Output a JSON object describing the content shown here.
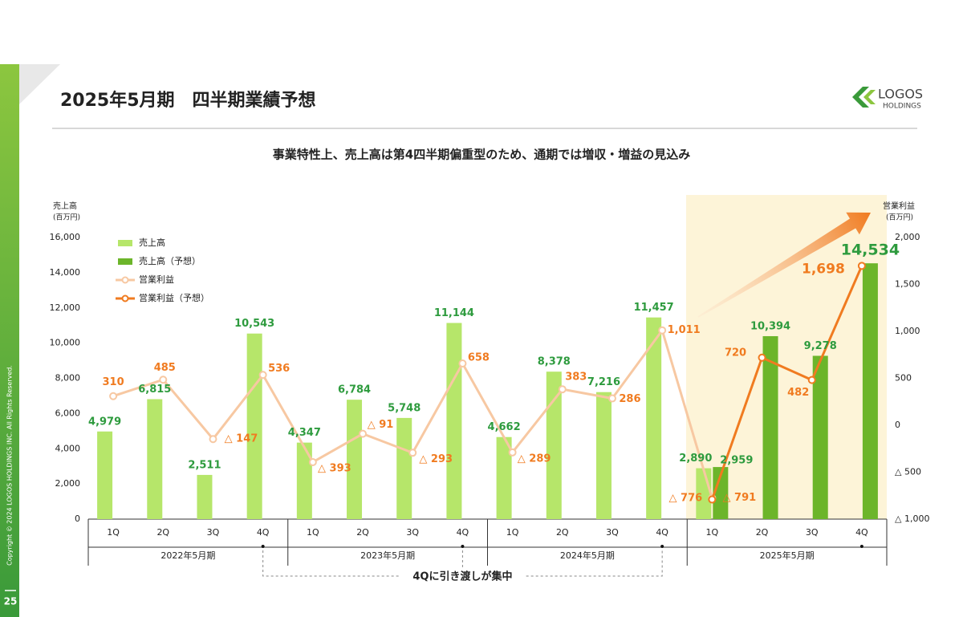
{
  "title": "2025年5月期　四半期業績予想",
  "subtitle": "事業特性上、売上高は第4四半期偏重型のため、通期では増収・増益の見込み",
  "logo": {
    "name": "LOGOS",
    "sub": "HOLDINGS"
  },
  "copyright": "Copyright © 2024 LOGOS HOLDINGS INC. All Rights Reserved.",
  "page_number": "25",
  "chart_data": {
    "type": "combo",
    "y_label": "売上高",
    "y_unit": "(百万円)",
    "y2_label": "営業利益",
    "y2_unit": "(百万円)",
    "categories": [
      "1Q",
      "2Q",
      "3Q",
      "4Q",
      "1Q",
      "2Q",
      "3Q",
      "4Q",
      "1Q",
      "2Q",
      "3Q",
      "4Q",
      "1Q",
      "2Q",
      "3Q",
      "4Q"
    ],
    "groups": [
      "2022年5月期",
      "2023年5月期",
      "2024年5月期",
      "2025年5月期"
    ],
    "annotation": "4Qに引き渡しが集中",
    "ylim": [
      0,
      16000
    ],
    "yticks": [
      0,
      {
        "value": 2000,
        "label": "2,000"
      },
      {
        "value": 4000,
        "label": "4,000"
      },
      {
        "value": 6000,
        "label": "6,000"
      },
      {
        "value": 8000,
        "label": "8,000"
      },
      {
        "value": 10000,
        "label": "10,000"
      },
      {
        "value": 12000,
        "label": "12,000"
      },
      {
        "value": 14000,
        "label": "14,000"
      },
      {
        "value": 16000,
        "label": "16,000"
      }
    ],
    "y2lim": [
      -1000,
      2000
    ],
    "y2ticks": [
      {
        "value": -1000,
        "label": "△ 1,000"
      },
      {
        "value": -500,
        "label": "△ 500"
      },
      0,
      500,
      {
        "value": 1000,
        "label": "1,000"
      },
      {
        "value": 1500,
        "label": "1,500"
      },
      {
        "value": 2000,
        "label": "2,000"
      }
    ],
    "series": [
      {
        "name": "売上高",
        "type": "bar",
        "color": "#b6e66a",
        "values": [
          4979,
          6815,
          2511,
          10543,
          4347,
          6784,
          5748,
          11144,
          4662,
          8378,
          7216,
          11457,
          2890,
          null,
          null,
          null
        ],
        "value_labels": [
          "4,979",
          "6,815",
          "2,511",
          "10,543",
          "4,347",
          "6,784",
          "5,748",
          "11,144",
          "4,662",
          "8,378",
          "7,216",
          "11,457",
          "2,890",
          null,
          null,
          null
        ]
      },
      {
        "name": "売上高（予想）",
        "type": "bar",
        "color": "#6cb52a",
        "values": [
          null,
          null,
          null,
          null,
          null,
          null,
          null,
          null,
          null,
          null,
          null,
          null,
          2959,
          10394,
          9278,
          14534
        ],
        "value_labels": [
          null,
          null,
          null,
          null,
          null,
          null,
          null,
          null,
          null,
          null,
          null,
          null,
          "2,959",
          "10,394",
          "9,278",
          "14,534"
        ]
      },
      {
        "name": "営業利益",
        "type": "line",
        "axis": "y2",
        "color": "#f7c8a2",
        "values": [
          310,
          485,
          -147,
          536,
          -393,
          -91,
          -293,
          658,
          -289,
          383,
          286,
          1011,
          -776,
          null,
          null,
          null
        ],
        "value_labels": [
          "310",
          "485",
          "△ 147",
          "536",
          "△ 393",
          "△ 91",
          "△ 293",
          "658",
          "△ 289",
          "383",
          "286",
          "1,011",
          "△ 776",
          null,
          null,
          null
        ]
      },
      {
        "name": "営業利益（予想）",
        "type": "line",
        "axis": "y2",
        "color": "#f07b20",
        "values": [
          null,
          null,
          null,
          null,
          null,
          null,
          null,
          null,
          null,
          null,
          null,
          null,
          -791,
          720,
          482,
          1698
        ],
        "value_labels": [
          null,
          null,
          null,
          null,
          null,
          null,
          null,
          null,
          null,
          null,
          null,
          null,
          "△ 791",
          "720",
          "482",
          "1,698"
        ]
      }
    ]
  }
}
